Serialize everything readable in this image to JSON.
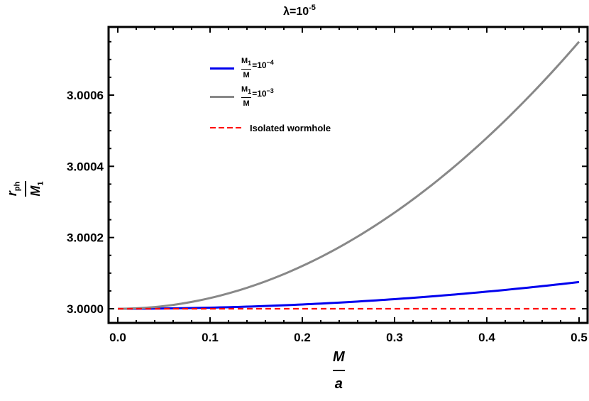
{
  "chart_data": {
    "type": "line",
    "title": "λ=10^-5",
    "title_base": "λ=10",
    "title_exp": "-5",
    "xlabel": "M/a",
    "ylabel": "r_ph/M_1",
    "xlim": [
      0.0,
      0.5
    ],
    "ylim": [
      3.0,
      3.00075
    ],
    "xticks": [
      0.0,
      0.1,
      0.2,
      0.3,
      0.4,
      0.5
    ],
    "xtick_labels": [
      "0.0",
      "0.1",
      "0.2",
      "0.3",
      "0.4",
      "0.5"
    ],
    "yticks": [
      3.0,
      3.0002,
      3.0004,
      3.0006
    ],
    "ytick_labels": [
      "3.0000",
      "3.0002",
      "3.0004",
      "3.0006"
    ],
    "grid": false,
    "legend_position": "upper-left-inside",
    "x": [
      0.0,
      0.05,
      0.1,
      0.15,
      0.2,
      0.25,
      0.3,
      0.35,
      0.4,
      0.45,
      0.5
    ],
    "series": [
      {
        "name": "M1/M=10^-4",
        "color": "#0000ee",
        "style": "solid",
        "values": [
          3.0,
          3.00000075,
          3.000003,
          3.00000675,
          3.000012,
          3.00001875,
          3.000027,
          3.00003675,
          3.000048,
          3.00006075,
          3.000075
        ]
      },
      {
        "name": "M1/M=10^-3",
        "color": "#888888",
        "style": "solid",
        "values": [
          3.0,
          3.0000075,
          3.00003,
          3.0000675,
          3.00012,
          3.0001875,
          3.00027,
          3.0003675,
          3.00048,
          3.0006075,
          3.00075
        ]
      },
      {
        "name": "Isolated wormhole",
        "color": "#ff0000",
        "style": "dashed",
        "values": [
          3.0,
          3.0,
          3.0,
          3.0,
          3.0,
          3.0,
          3.0,
          3.0,
          3.0,
          3.0,
          3.0
        ]
      }
    ]
  },
  "labels": {
    "y_num": "r",
    "y_num_sub": "ph",
    "y_den": "M",
    "y_den_sub": "1",
    "x_num": "M",
    "x_den": "a"
  },
  "legend": [
    {
      "num": "M",
      "num_sub": "1",
      "den": "M",
      "eq": "=10",
      "exp": "−4",
      "color": "#0000ee"
    },
    {
      "num": "M",
      "num_sub": "1",
      "den": "M",
      "eq": "=10",
      "exp": "−3",
      "color": "#888888"
    },
    {
      "text": "Isolated wormhole",
      "color": "#ff0000"
    }
  ]
}
